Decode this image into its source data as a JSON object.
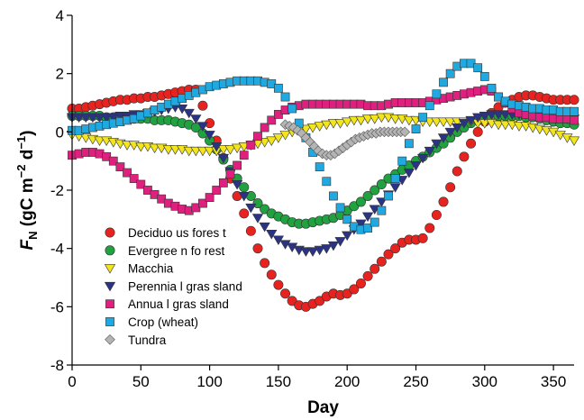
{
  "chart_data": {
    "type": "scatter",
    "title": "",
    "xlabel": "Day",
    "ylabel_parts": [
      "F",
      "N",
      " (gC m",
      "−2",
      " d",
      "−1",
      ")"
    ],
    "xlim": [
      0,
      365
    ],
    "ylim": [
      -8,
      4
    ],
    "xticks": [
      "0",
      "50",
      "100",
      "150",
      "200",
      "250",
      "300",
      "350"
    ],
    "yticks": [
      "-8",
      "-6",
      "-4",
      "-2",
      "0",
      "2",
      "4"
    ],
    "grid": false,
    "legend_position": "bottom-left",
    "series": [
      {
        "name": "Deciduous forest",
        "label_text": "Deciduo us fores t",
        "marker": "circle",
        "color": "#e8231f",
        "x": [
          0,
          5,
          10,
          15,
          20,
          25,
          30,
          35,
          40,
          45,
          50,
          55,
          60,
          65,
          70,
          75,
          80,
          85,
          90,
          95,
          100,
          105,
          110,
          115,
          120,
          125,
          130,
          135,
          140,
          145,
          150,
          155,
          160,
          165,
          170,
          175,
          180,
          185,
          190,
          195,
          200,
          205,
          210,
          215,
          220,
          225,
          230,
          235,
          240,
          245,
          250,
          255,
          260,
          265,
          270,
          275,
          280,
          285,
          290,
          295,
          300,
          305,
          310,
          315,
          320,
          325,
          330,
          335,
          340,
          345,
          350,
          355,
          360,
          365
        ],
        "y": [
          0.8,
          0.8,
          0.85,
          0.9,
          0.95,
          1.0,
          1.05,
          1.1,
          1.1,
          1.15,
          1.15,
          1.2,
          1.2,
          1.25,
          1.3,
          1.35,
          1.4,
          1.45,
          1.45,
          0.9,
          0.3,
          -0.3,
          -0.9,
          -1.6,
          -2.2,
          -2.8,
          -3.4,
          -4.0,
          -4.5,
          -4.9,
          -5.25,
          -5.55,
          -5.8,
          -5.95,
          -6.0,
          -5.9,
          -5.8,
          -5.65,
          -5.55,
          -5.6,
          -5.55,
          -5.4,
          -5.2,
          -4.95,
          -4.7,
          -4.45,
          -4.2,
          -4.0,
          -3.8,
          -3.7,
          -3.7,
          -3.65,
          -3.3,
          -2.85,
          -2.4,
          -1.9,
          -1.35,
          -0.85,
          -0.4,
          0.0,
          0.35,
          0.65,
          0.85,
          1.0,
          1.1,
          1.2,
          1.25,
          1.25,
          1.2,
          1.15,
          1.1,
          1.1,
          1.1,
          1.1
        ]
      },
      {
        "name": "Evergreen forest",
        "label_text": "Evergree n fo rest",
        "marker": "circle",
        "color": "#1fa23f",
        "x": [
          0,
          5,
          10,
          15,
          20,
          25,
          30,
          35,
          40,
          45,
          50,
          55,
          60,
          65,
          70,
          75,
          80,
          85,
          90,
          95,
          100,
          105,
          110,
          115,
          120,
          125,
          130,
          135,
          140,
          145,
          150,
          155,
          160,
          165,
          170,
          175,
          180,
          185,
          190,
          195,
          200,
          205,
          210,
          215,
          220,
          225,
          230,
          235,
          240,
          245,
          250,
          255,
          260,
          265,
          270,
          275,
          280,
          285,
          290,
          295,
          300,
          305,
          310,
          315,
          320,
          325,
          330,
          335,
          340,
          345,
          350,
          355,
          360,
          365
        ],
        "y": [
          0.55,
          0.55,
          0.55,
          0.55,
          0.55,
          0.5,
          0.5,
          0.5,
          0.45,
          0.45,
          0.45,
          0.45,
          0.4,
          0.4,
          0.4,
          0.35,
          0.3,
          0.25,
          0.15,
          -0.05,
          -0.3,
          -0.6,
          -0.95,
          -1.3,
          -1.6,
          -1.9,
          -2.2,
          -2.45,
          -2.65,
          -2.8,
          -2.9,
          -3.0,
          -3.1,
          -3.15,
          -3.15,
          -3.1,
          -3.05,
          -3.0,
          -2.95,
          -2.85,
          -2.7,
          -2.55,
          -2.4,
          -2.2,
          -2.0,
          -1.8,
          -1.6,
          -1.45,
          -1.3,
          -1.15,
          -1.0,
          -0.85,
          -0.7,
          -0.55,
          -0.4,
          -0.2,
          0.0,
          0.15,
          0.3,
          0.4,
          0.5,
          0.5,
          0.55,
          0.55,
          0.55,
          0.55,
          0.5,
          0.5,
          0.45,
          0.4,
          0.35,
          0.3,
          0.3,
          0.25
        ]
      },
      {
        "name": "Macchia",
        "label_text": "Macchia",
        "marker": "triangle-down",
        "color": "#f2e51c",
        "x": [
          0,
          5,
          10,
          15,
          20,
          25,
          30,
          35,
          40,
          45,
          50,
          55,
          60,
          65,
          70,
          75,
          80,
          85,
          90,
          95,
          100,
          105,
          110,
          115,
          120,
          125,
          130,
          135,
          140,
          145,
          150,
          155,
          160,
          165,
          170,
          175,
          180,
          185,
          190,
          195,
          200,
          205,
          210,
          215,
          220,
          225,
          230,
          235,
          240,
          245,
          250,
          255,
          260,
          265,
          270,
          275,
          280,
          285,
          290,
          295,
          300,
          305,
          310,
          315,
          320,
          325,
          330,
          335,
          340,
          345,
          350,
          355,
          360,
          365
        ],
        "y": [
          -0.1,
          -0.15,
          -0.2,
          -0.25,
          -0.3,
          -0.3,
          -0.35,
          -0.4,
          -0.45,
          -0.45,
          -0.5,
          -0.5,
          -0.55,
          -0.55,
          -0.6,
          -0.6,
          -0.6,
          -0.65,
          -0.65,
          -0.65,
          -0.65,
          -0.65,
          -0.6,
          -0.6,
          -0.55,
          -0.5,
          -0.45,
          -0.4,
          -0.35,
          -0.3,
          -0.2,
          -0.1,
          0.0,
          0.05,
          0.1,
          0.15,
          0.2,
          0.25,
          0.3,
          0.3,
          0.35,
          0.4,
          0.4,
          0.45,
          0.45,
          0.5,
          0.5,
          0.45,
          0.45,
          0.4,
          0.4,
          0.35,
          0.35,
          0.35,
          0.35,
          0.35,
          0.35,
          0.35,
          0.35,
          0.3,
          0.3,
          0.3,
          0.25,
          0.25,
          0.25,
          0.2,
          0.2,
          0.15,
          0.1,
          0.05,
          0.0,
          -0.1,
          -0.2,
          -0.3
        ]
      },
      {
        "name": "Perennial grassland",
        "label_text": "Perennia l gras sland",
        "marker": "triangle-down",
        "color": "#2b3484",
        "x": [
          0,
          5,
          10,
          15,
          20,
          25,
          30,
          35,
          40,
          45,
          50,
          55,
          60,
          65,
          70,
          75,
          80,
          85,
          90,
          95,
          100,
          105,
          110,
          115,
          120,
          125,
          130,
          135,
          140,
          145,
          150,
          155,
          160,
          165,
          170,
          175,
          180,
          185,
          190,
          195,
          200,
          205,
          210,
          215,
          220,
          225,
          230,
          235,
          240,
          245,
          250,
          255,
          260,
          265,
          270,
          275,
          280,
          285,
          290,
          295,
          300,
          305,
          310,
          315,
          320,
          325,
          330,
          335,
          340,
          345,
          350,
          355,
          360,
          365
        ],
        "y": [
          0.5,
          0.5,
          0.5,
          0.5,
          0.5,
          0.5,
          0.5,
          0.55,
          0.55,
          0.6,
          0.6,
          0.65,
          0.7,
          0.75,
          0.8,
          0.85,
          0.8,
          0.65,
          0.45,
          0.2,
          -0.1,
          -0.5,
          -0.9,
          -1.35,
          -1.8,
          -2.2,
          -2.6,
          -2.95,
          -3.25,
          -3.5,
          -3.7,
          -3.85,
          -3.95,
          -4.05,
          -4.1,
          -4.1,
          -4.05,
          -4.0,
          -3.9,
          -3.75,
          -3.55,
          -3.35,
          -3.15,
          -2.9,
          -2.65,
          -2.4,
          -2.15,
          -1.9,
          -1.65,
          -1.4,
          -1.15,
          -0.9,
          -0.65,
          -0.4,
          -0.2,
          0.0,
          0.15,
          0.3,
          0.4,
          0.5,
          0.55,
          0.6,
          0.6,
          0.6,
          0.6,
          0.6,
          0.6,
          0.6,
          0.55,
          0.55,
          0.5,
          0.5,
          0.45,
          0.45
        ]
      },
      {
        "name": "Annual grassland",
        "label_text": "Annua l gras sland",
        "marker": "square",
        "color": "#e0207f",
        "x": [
          0,
          5,
          10,
          15,
          20,
          25,
          30,
          35,
          40,
          45,
          50,
          55,
          60,
          65,
          70,
          75,
          80,
          85,
          90,
          95,
          100,
          105,
          110,
          115,
          120,
          125,
          130,
          135,
          140,
          145,
          150,
          155,
          160,
          165,
          170,
          175,
          180,
          185,
          190,
          195,
          200,
          205,
          210,
          215,
          220,
          225,
          230,
          235,
          240,
          245,
          250,
          255,
          260,
          265,
          270,
          275,
          280,
          285,
          290,
          295,
          300,
          305,
          310,
          315,
          320,
          325,
          330,
          335,
          340,
          345,
          350,
          355,
          360,
          365
        ],
        "y": [
          -0.8,
          -0.75,
          -0.7,
          -0.7,
          -0.75,
          -0.85,
          -1.0,
          -1.2,
          -1.4,
          -1.6,
          -1.8,
          -2.0,
          -2.15,
          -2.3,
          -2.45,
          -2.55,
          -2.65,
          -2.7,
          -2.6,
          -2.45,
          -2.25,
          -2.0,
          -1.75,
          -1.45,
          -1.15,
          -0.8,
          -0.45,
          -0.15,
          0.15,
          0.4,
          0.6,
          0.75,
          0.85,
          0.9,
          0.95,
          0.95,
          0.95,
          0.95,
          0.95,
          0.95,
          0.95,
          0.95,
          0.95,
          0.9,
          0.9,
          0.9,
          0.95,
          1.0,
          1.0,
          1.0,
          1.0,
          1.0,
          1.05,
          1.1,
          1.15,
          1.2,
          1.25,
          1.3,
          1.35,
          1.4,
          1.45,
          1.4,
          1.2,
          1.0,
          0.8,
          0.65,
          0.6,
          0.55,
          0.5,
          0.5,
          0.45,
          0.45,
          0.45,
          0.4
        ]
      },
      {
        "name": "Crop (wheat)",
        "label_text": "Crop  (wheat)",
        "marker": "square",
        "color": "#1fa9e0",
        "x": [
          0,
          5,
          10,
          15,
          20,
          25,
          30,
          35,
          40,
          45,
          50,
          55,
          60,
          65,
          70,
          75,
          80,
          85,
          90,
          95,
          100,
          105,
          110,
          115,
          120,
          125,
          130,
          135,
          140,
          145,
          150,
          155,
          160,
          165,
          170,
          175,
          180,
          185,
          190,
          195,
          200,
          205,
          210,
          215,
          220,
          225,
          230,
          235,
          240,
          245,
          250,
          255,
          260,
          265,
          270,
          275,
          280,
          285,
          290,
          295,
          300,
          305,
          310,
          315,
          320,
          325,
          330,
          335,
          340,
          345,
          350,
          355,
          360,
          365
        ],
        "y": [
          0.05,
          0.05,
          0.1,
          0.15,
          0.2,
          0.25,
          0.3,
          0.35,
          0.4,
          0.45,
          0.55,
          0.65,
          0.75,
          0.85,
          0.95,
          1.05,
          1.15,
          1.25,
          1.35,
          1.45,
          1.55,
          1.6,
          1.65,
          1.7,
          1.75,
          1.75,
          1.75,
          1.75,
          1.7,
          1.65,
          1.5,
          1.2,
          0.8,
          0.3,
          -0.2,
          -0.7,
          -1.2,
          -1.7,
          -2.2,
          -2.6,
          -3.0,
          -3.25,
          -3.35,
          -3.3,
          -3.1,
          -2.7,
          -2.2,
          -1.6,
          -1.0,
          -0.4,
          0.1,
          0.5,
          0.9,
          1.3,
          1.7,
          2.0,
          2.25,
          2.35,
          2.35,
          2.2,
          1.9,
          1.5,
          1.2,
          1.05,
          0.95,
          0.9,
          0.85,
          0.8,
          0.8,
          0.75,
          0.75,
          0.7,
          0.7,
          0.7
        ]
      },
      {
        "name": "Tundra",
        "label_text": "Tundra",
        "marker": "diamond",
        "color": "#b4b4b4",
        "x": [
          155,
          158,
          161,
          164,
          167,
          170,
          173,
          176,
          179,
          182,
          185,
          188,
          191,
          194,
          197,
          200,
          203,
          206,
          209,
          212,
          215,
          218,
          221,
          224,
          227,
          230,
          233,
          236,
          239,
          242
        ],
        "y": [
          0.25,
          0.2,
          0.15,
          0.05,
          -0.05,
          -0.2,
          -0.35,
          -0.5,
          -0.65,
          -0.75,
          -0.8,
          -0.8,
          -0.75,
          -0.65,
          -0.55,
          -0.45,
          -0.35,
          -0.25,
          -0.2,
          -0.15,
          -0.1,
          -0.05,
          -0.05,
          0.0,
          0.0,
          0.0,
          0.0,
          0.0,
          0.0,
          0.0
        ]
      }
    ]
  }
}
